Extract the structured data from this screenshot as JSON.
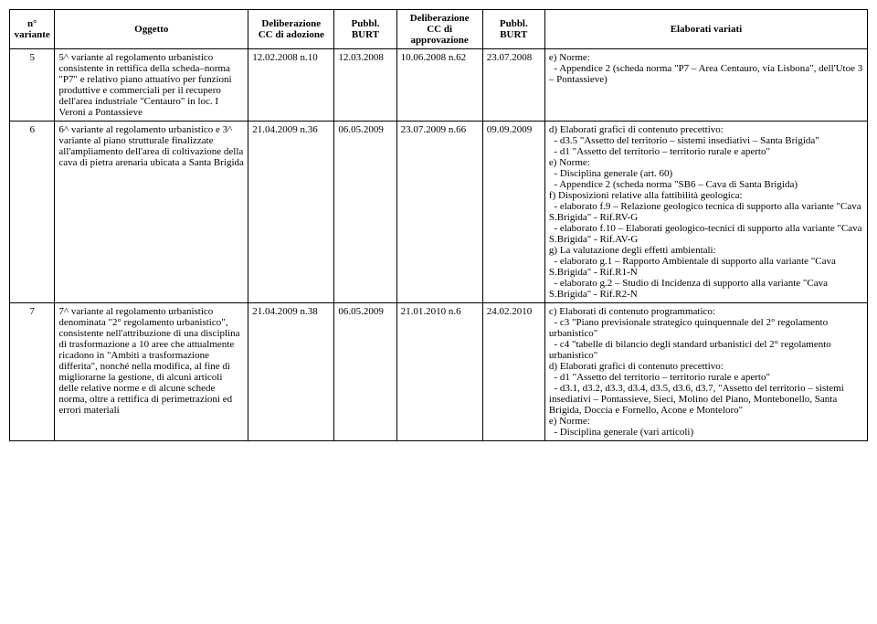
{
  "headers": {
    "n": "n°\nvariante",
    "oggetto": "Oggetto",
    "delib_adozione": "Deliberazione\nCC di adozione",
    "pubbl1": "Pubbl.\nBURT",
    "delib_approv": "Deliberazione\nCC di\napprovazione",
    "pubbl2": "Pubbl.\nBURT",
    "elaborati": "Elaborati variati"
  },
  "rows": [
    {
      "n": "5",
      "oggetto": "5^ variante al regolamento urbanistico consistente in rettifica della scheda–norma \"P7\" e relativo piano attuativo per funzioni produttive e commerciali per il recupero dell'area industriale \"Centauro\" in loc. I Veroni a Pontassieve",
      "delib_adozione": "12.02.2008 n.10",
      "pubbl1": "12.03.2008",
      "delib_approv": "10.06.2008 n.62",
      "pubbl2": "23.07.2008",
      "elaborati": "e) Norme:\n  - Appendice 2 (scheda norma \"P7 – Area Centauro, via Lisbona\", dell'Utoe 3 – Pontassieve)"
    },
    {
      "n": "6",
      "oggetto": "6^ variante al regolamento urbanistico e 3^ variante al piano strutturale finalizzate all'ampliamento dell'area di coltivazione della cava di pietra arenaria ubicata a Santa Brigida",
      "delib_adozione": "21.04.2009 n.36",
      "pubbl1": "06.05.2009",
      "delib_approv": "23.07.2009 n.66",
      "pubbl2": "09.09.2009",
      "elaborati": "d) Elaborati grafici di contenuto precettivo:\n  - d3.5 \"Assetto del territorio – sistemi insediativi – Santa Brigida\"\n  - d1 \"Assetto del territorio – territorio rurale e aperto\"\ne) Norme:\n  - Disciplina generale (art. 60)\n  - Appendice 2 (scheda norma \"SB6 – Cava di Santa Brigida)\nf) Disposizioni relative alla fattibilità geologica:\n  - elaborato f.9 – Relazione geologico tecnica di supporto alla variante \"Cava S.Brigida\" - Rif.RV-G\n  - elaborato f.10 – Elaborati geologico-tecnici di supporto alla variante \"Cava S.Brigida\" - Rif.AV-G\ng) La valutazione degli effetti ambientali:\n  - elaborato g.1 – Rapporto Ambientale di supporto alla variante \"Cava S.Brigida\" - Rif.R1-N\n  - elaborato g.2 – Studio di Incidenza di supporto alla variante \"Cava S.Brigida\" - Rif.R2-N"
    },
    {
      "n": "7",
      "oggetto": "7^ variante al regolamento urbanistico denominata \"2° regolamento urbanistico\", consistente nell'attribuzione di una disciplina di trasformazione a 10 aree che attualmente ricadono in \"Ambiti a trasformazione differita\", nonché nella modifica, al fine di migliorarne la gestione, di alcuni articoli delle relative norme e di alcune schede norma, oltre a rettifica di perimetrazioni ed errori materiali",
      "delib_adozione": "21.04.2009 n.38",
      "pubbl1": "06.05.2009",
      "delib_approv": "21.01.2010 n.6",
      "pubbl2": "24.02.2010",
      "elaborati": "c) Elaborati di contenuto programmatico:\n  - c3 \"Piano previsionale strategico quinquennale del 2° regolamento urbanistico\"\n  - c4 \"tabelle di bilancio degli standard urbanistici del 2° regolamento urbanistico\"\nd) Elaborati grafici di contenuto precettivo:\n  - d1 \"Assetto del territorio – territorio rurale e aperto\"\n  - d3.1, d3.2, d3.3, d3.4, d3.5, d3.6, d3.7, \"Assetto del territorio – sistemi insediativi – Pontassieve, Sieci, Molino del Piano, Montebonello, Santa Brigida, Doccia e Fornello, Acone e Monteloro\"\ne) Norme:\n  - Disciplina generale (vari articoli)"
    }
  ]
}
